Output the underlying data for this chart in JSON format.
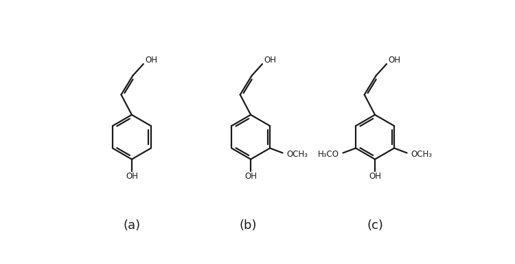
{
  "bg_color": "#ffffff",
  "line_color": "#1a1a1a",
  "line_width": 1.6,
  "label_a": "(a)",
  "label_b": "(b)",
  "label_c": "(c)",
  "label_fontsize": 13,
  "text_fontsize": 8.5
}
